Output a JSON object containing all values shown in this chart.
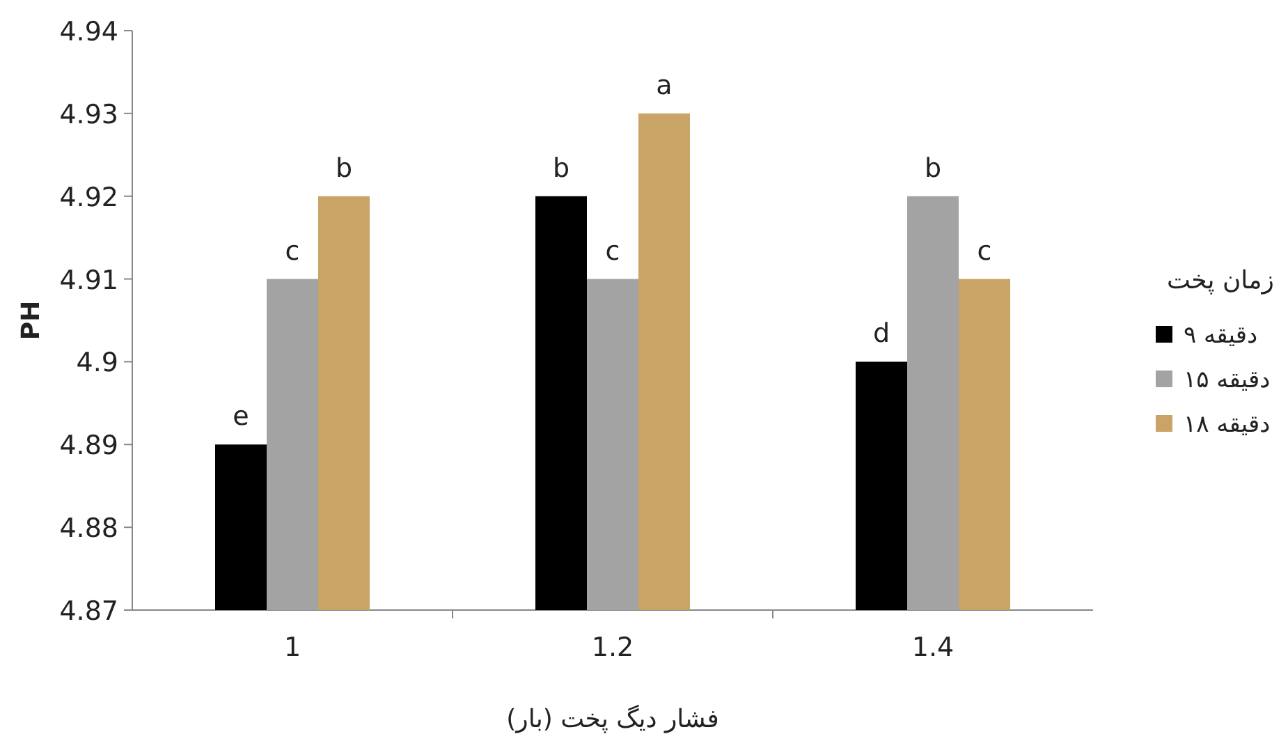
{
  "chart_data": {
    "type": "bar",
    "xlabel": "فشار دیگ پخت (بار)",
    "ylabel": "PH",
    "legend_title": "زمان پخت",
    "legend": "right",
    "grid": false,
    "categories": [
      "1",
      "1.2",
      "1.4"
    ],
    "ylim": [
      4.87,
      4.94
    ],
    "yticks": [
      4.87,
      4.88,
      4.89,
      4.9,
      4.91,
      4.92,
      4.93,
      4.94
    ],
    "series": [
      {
        "name": "۹ دقیقه",
        "color": "#000000",
        "values": [
          4.89,
          4.92,
          4.9
        ],
        "value_labels": [
          "e",
          "b",
          "d"
        ]
      },
      {
        "name": "۱۵ دقیقه",
        "color": "#a3a3a3",
        "values": [
          4.91,
          4.91,
          4.92
        ],
        "value_labels": [
          "c",
          "c",
          "b"
        ]
      },
      {
        "name": "۱۸ دقیقه",
        "color": "#c9a466",
        "values": [
          4.92,
          4.93,
          4.91
        ],
        "value_labels": [
          "b",
          "a",
          "c"
        ]
      }
    ]
  }
}
